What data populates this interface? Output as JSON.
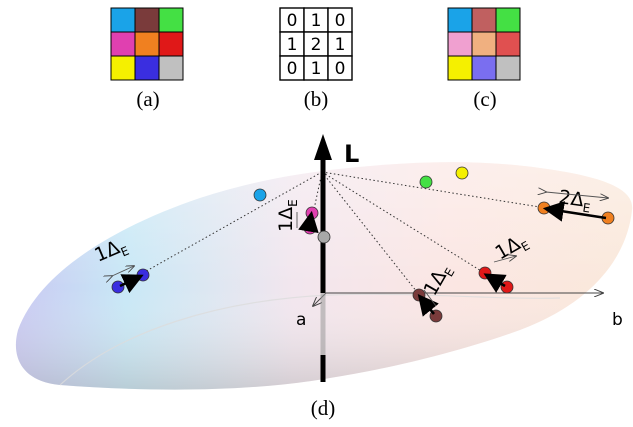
{
  "panels": {
    "a": {
      "caption": "(a)",
      "colors": [
        "#1aa3e8",
        "#7a3b3b",
        "#44e044",
        "#e040b0",
        "#f08020",
        "#e01818",
        "#f5f000",
        "#3a2ee0",
        "#c0c0c0"
      ]
    },
    "b": {
      "caption": "(b)",
      "values": [
        "0",
        "1",
        "0",
        "1",
        "2",
        "1",
        "0",
        "1",
        "0"
      ]
    },
    "c": {
      "caption": "(c)",
      "colors": [
        "#1aa3e8",
        "#c06060",
        "#44e044",
        "#f0a0d0",
        "#f0b080",
        "#e05050",
        "#f5f000",
        "#7a6ef0",
        "#c0c0c0"
      ]
    }
  },
  "diagram": {
    "caption": "(d)",
    "axis_l_label": "L",
    "axis_a_label": "a",
    "axis_b_label": "b",
    "delta_labels": {
      "blue": "1Δ",
      "magenta": "1Δ",
      "brown": "1Δ",
      "red": "1Δ",
      "orange": "2Δ"
    },
    "delta_subscript": "E",
    "colors": {
      "cyan": "#1aa3e8",
      "green": "#44e044",
      "yellow": "#f5f000",
      "blue": "#3a2ee0",
      "magenta": "#e040b0",
      "gray": "#a8a8a8",
      "brown": "#7a3b3b",
      "red": "#e01818",
      "orange": "#f08020"
    }
  }
}
